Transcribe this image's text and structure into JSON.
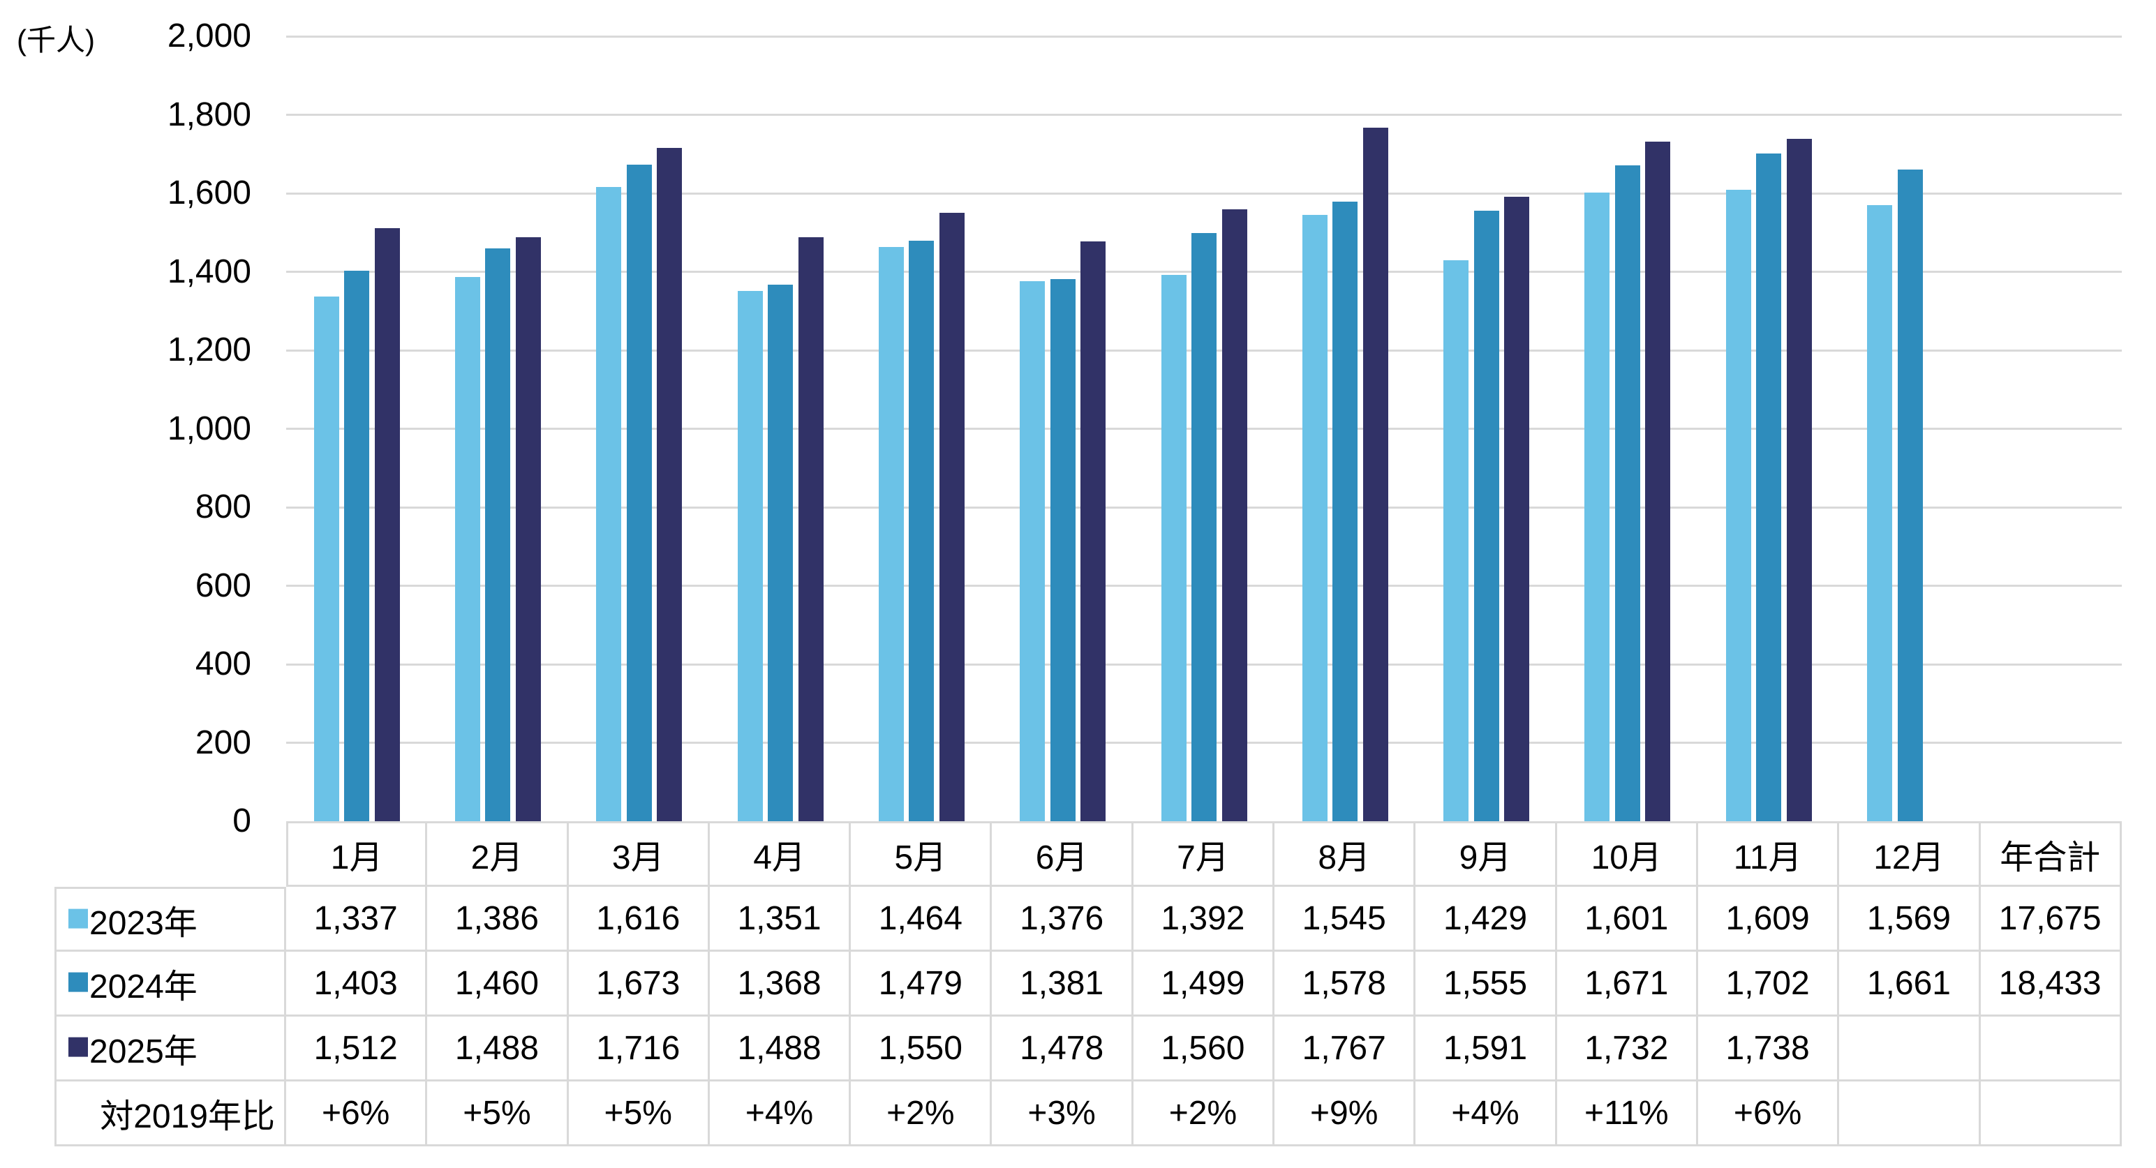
{
  "unit_label": "(千人)",
  "colors": {
    "series_2023": "#6BC2E7",
    "series_2024": "#2E8CBC",
    "series_2025": "#313267",
    "gridline": "#D9D9D9",
    "table_border": "#D9D9D9",
    "text": "#000000",
    "background": "#FFFFFF"
  },
  "y_axis": {
    "tick_labels": [
      "2,000",
      "1,800",
      "1,600",
      "1,400",
      "1,200",
      "1,000",
      "800",
      "600",
      "400",
      "200",
      "0"
    ],
    "tick_values": [
      2000,
      1800,
      1600,
      1400,
      1200,
      1000,
      800,
      600,
      400,
      200,
      0
    ]
  },
  "chart_data": {
    "type": "bar",
    "title": "",
    "unit": "千人",
    "categories": [
      "1月",
      "2月",
      "3月",
      "4月",
      "5月",
      "6月",
      "7月",
      "8月",
      "9月",
      "10月",
      "11月",
      "12月"
    ],
    "series": [
      {
        "name": "2023年",
        "color": "#6BC2E7",
        "values": [
          1337,
          1386,
          1616,
          1351,
          1464,
          1376,
          1392,
          1545,
          1429,
          1601,
          1609,
          1569
        ]
      },
      {
        "name": "2024年",
        "color": "#2E8CBC",
        "values": [
          1403,
          1460,
          1673,
          1368,
          1479,
          1381,
          1499,
          1578,
          1555,
          1671,
          1702,
          1661
        ]
      },
      {
        "name": "2025年",
        "color": "#313267",
        "values": [
          1512,
          1488,
          1716,
          1488,
          1550,
          1478,
          1560,
          1767,
          1591,
          1732,
          1738,
          null
        ]
      }
    ],
    "ylim": [
      0,
      2000
    ],
    "y_step": 200,
    "grid": true,
    "legend_position": "data-table-left"
  },
  "table": {
    "columns": [
      "1月",
      "2月",
      "3月",
      "4月",
      "5月",
      "6月",
      "7月",
      "8月",
      "9月",
      "10月",
      "11月",
      "12月",
      "年合計"
    ],
    "rows": [
      {
        "label": "2023年",
        "legend_color": "#6BC2E7",
        "align": "left",
        "cells": [
          "1,337",
          "1,386",
          "1,616",
          "1,351",
          "1,464",
          "1,376",
          "1,392",
          "1,545",
          "1,429",
          "1,601",
          "1,609",
          "1,569",
          "17,675"
        ]
      },
      {
        "label": "2024年",
        "legend_color": "#2E8CBC",
        "align": "left",
        "cells": [
          "1,403",
          "1,460",
          "1,673",
          "1,368",
          "1,479",
          "1,381",
          "1,499",
          "1,578",
          "1,555",
          "1,671",
          "1,702",
          "1,661",
          "18,433"
        ]
      },
      {
        "label": "2025年",
        "legend_color": "#313267",
        "align": "left",
        "cells": [
          "1,512",
          "1,488",
          "1,716",
          "1,488",
          "1,550",
          "1,478",
          "1,560",
          "1,767",
          "1,591",
          "1,732",
          "1,738",
          "",
          ""
        ]
      },
      {
        "label": "対2019年比",
        "legend_color": null,
        "align": "right",
        "cells": [
          "+6%",
          "+5%",
          "+5%",
          "+4%",
          "+2%",
          "+3%",
          "+2%",
          "+9%",
          "+4%",
          "+11%",
          "+6%",
          "",
          ""
        ]
      }
    ]
  }
}
